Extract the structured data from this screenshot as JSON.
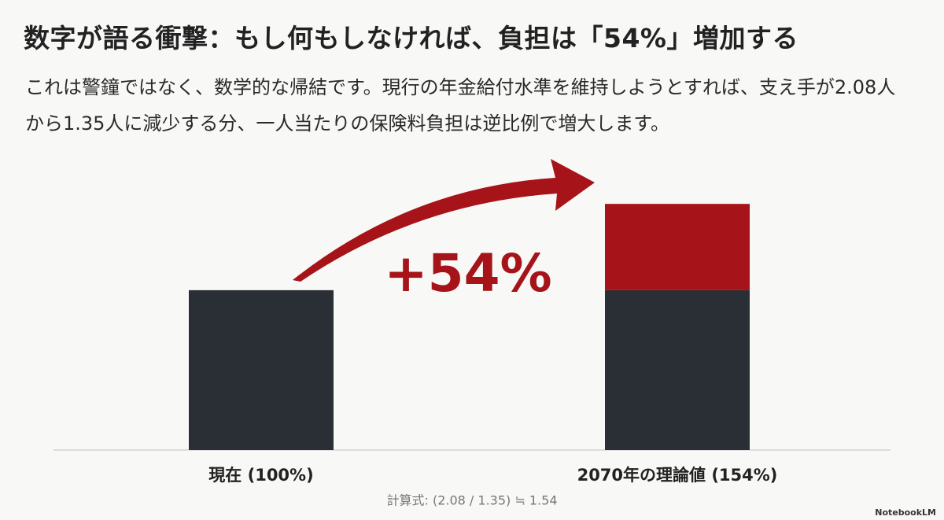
{
  "chart_data": {
    "type": "bar",
    "stacked": true,
    "title": "数字が語る衝撃：もし何もしなければ、負担は「54%」増加する",
    "subtitle": "これは警鐘ではなく、数学的な帰結です。現行の年金給付水準を維持しようとすれば、支え手が2.08人から1.35人に減少する分、一人当たりの保険料負担は逆比例で増大します。",
    "categories": [
      "現在 (100%)",
      "2070年の理論値 (154%)"
    ],
    "series": [
      {
        "color": "#2a2e35",
        "values": [
          100,
          100
        ]
      },
      {
        "color": "#a61419",
        "values": [
          null,
          54
        ]
      }
    ],
    "annotation": "+54%",
    "footnote": "計算式: (2.08 / 1.35) ≒ 1.54",
    "watermark": "NotebookLM",
    "ylim": [
      0,
      160
    ]
  }
}
